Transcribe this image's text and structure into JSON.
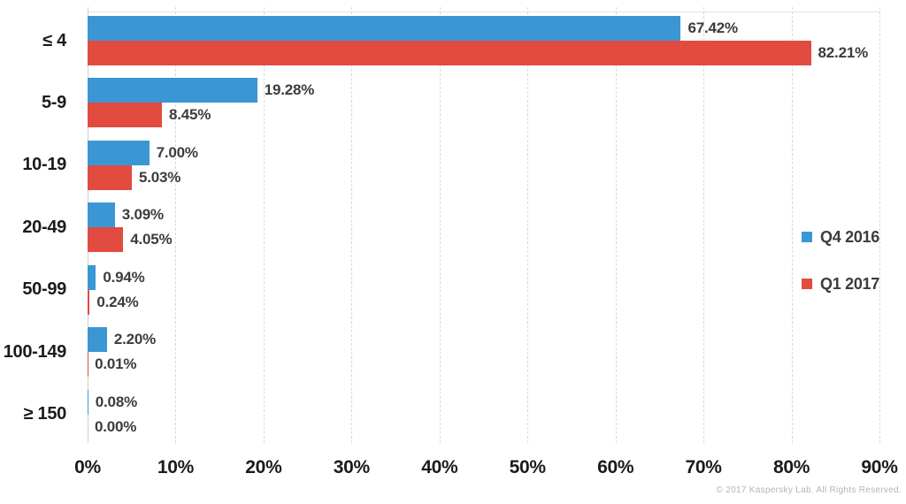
{
  "chart_data": {
    "type": "bar",
    "orientation": "horizontal",
    "title": "",
    "xlabel": "",
    "ylabel": "",
    "categories": [
      "≤ 4",
      "5-9",
      "10-19",
      "20-49",
      "50-99",
      "100-149",
      "≥ 150"
    ],
    "series": [
      {
        "name": "Q4 2016",
        "color": "#3a97d4",
        "values": [
          67.42,
          19.28,
          7.0,
          3.09,
          0.94,
          2.2,
          0.08
        ],
        "labels": [
          "67.42%",
          "19.28%",
          "7.00%",
          "3.09%",
          "0.94%",
          "2.20%",
          "0.08%"
        ]
      },
      {
        "name": "Q1 2017",
        "color": "#e14b40",
        "values": [
          82.21,
          8.45,
          5.03,
          4.05,
          0.24,
          0.01,
          0.0
        ],
        "labels": [
          "82.21%",
          "8.45%",
          "5.03%",
          "4.05%",
          "0.24%",
          "0.01%",
          "0.00%"
        ]
      }
    ],
    "x_ticks": [
      "0%",
      "10%",
      "20%",
      "30%",
      "40%",
      "50%",
      "60%",
      "70%",
      "80%",
      "90%"
    ],
    "xlim": [
      0,
      90
    ],
    "grid": "vertical-dashed",
    "gridline_color": "#d9d9d9",
    "axis_line_color": "#cfcfcf",
    "value_label_color": "#3c3c3c",
    "tick_label_color": "#1b1b1b",
    "legend_position": "right"
  },
  "footer": {
    "copyright": "© 2017 Kaspersky Lab. All Rights Reserved."
  }
}
